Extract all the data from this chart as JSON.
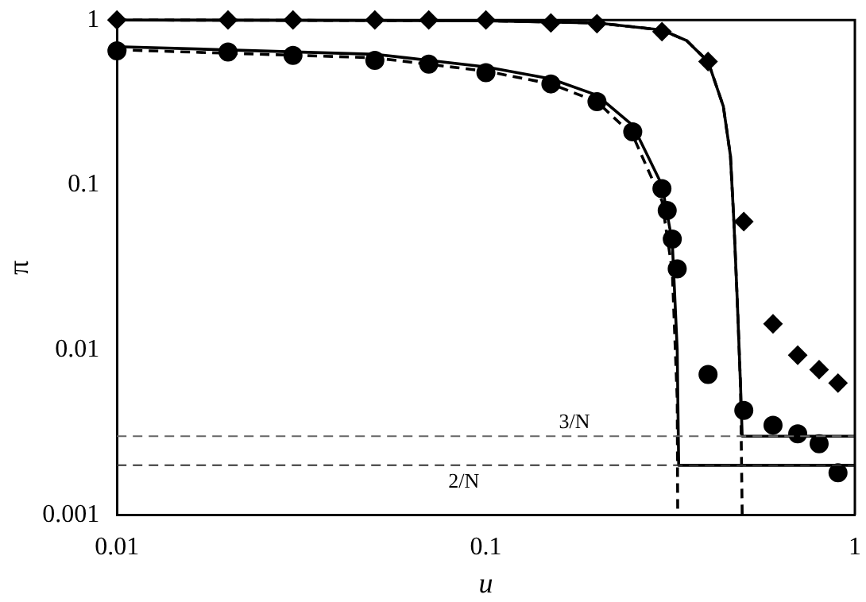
{
  "chart_data": {
    "type": "scatter",
    "xlabel": "u",
    "ylabel": "π",
    "log": "xy",
    "xlim": [
      0.01,
      1
    ],
    "ylim": [
      0.001,
      1
    ],
    "xticks": [
      0.01,
      0.1,
      1
    ],
    "yticks": [
      0.001,
      0.01,
      0.1,
      1
    ],
    "grid": false,
    "legend": false,
    "series": [
      {
        "type": "scatter",
        "marker": "diamond",
        "color": "#000000",
        "x": [
          0.01,
          0.02,
          0.03,
          0.05,
          0.07,
          0.1,
          0.15,
          0.2,
          0.3,
          0.4,
          0.5,
          0.6,
          0.7,
          0.8,
          0.9
        ],
        "values": [
          1,
          1,
          1,
          1,
          1,
          1,
          0.96,
          0.95,
          0.85,
          0.56,
          0.06,
          0.0144,
          0.0093,
          0.0076,
          0.0063
        ]
      },
      {
        "type": "scatter",
        "marker": "circle",
        "color": "#000000",
        "x": [
          0.01,
          0.02,
          0.03,
          0.05,
          0.07,
          0.1,
          0.15,
          0.2,
          0.25,
          0.3,
          0.31,
          0.32,
          0.33,
          0.4,
          0.5,
          0.6,
          0.7,
          0.8,
          0.9
        ],
        "values": [
          0.65,
          0.64,
          0.61,
          0.57,
          0.54,
          0.48,
          0.41,
          0.32,
          0.21,
          0.095,
          0.07,
          0.047,
          0.031,
          0.0071,
          0.0043,
          0.0035,
          0.0031,
          0.0027,
          0.0018
        ]
      },
      {
        "type": "line",
        "marker": "none",
        "line_style": "solid",
        "color": "#000000",
        "x": [
          0.01,
          0.1,
          0.2,
          0.3,
          0.35,
          0.4,
          0.44,
          0.46,
          0.47,
          0.48,
          0.49,
          0.495,
          1
        ],
        "values": [
          1,
          0.99,
          0.96,
          0.87,
          0.75,
          0.56,
          0.3,
          0.15,
          0.06,
          0.02,
          0.006,
          0.003,
          0.003
        ]
      },
      {
        "type": "line",
        "marker": "none",
        "line_style": "dashed",
        "color": "#000000",
        "x": [
          0.01,
          0.1,
          0.2,
          0.3,
          0.35,
          0.4,
          0.44,
          0.46,
          0.47,
          0.48,
          0.49,
          0.495
        ],
        "values": [
          1,
          0.99,
          0.96,
          0.87,
          0.75,
          0.56,
          0.3,
          0.15,
          0.06,
          0.02,
          0.006,
          0.001
        ]
      },
      {
        "type": "line",
        "marker": "none",
        "line_style": "solid",
        "color": "#000000",
        "x": [
          0.01,
          0.05,
          0.1,
          0.15,
          0.2,
          0.25,
          0.3,
          0.32,
          0.33,
          0.333,
          1
        ],
        "values": [
          0.69,
          0.62,
          0.52,
          0.44,
          0.35,
          0.23,
          0.1,
          0.045,
          0.01,
          0.002,
          0.002
        ]
      },
      {
        "type": "line",
        "marker": "none",
        "line_style": "dashed",
        "color": "#000000",
        "x": [
          0.01,
          0.05,
          0.1,
          0.15,
          0.2,
          0.25,
          0.3,
          0.32,
          0.33,
          0.331
        ],
        "values": [
          0.66,
          0.59,
          0.49,
          0.41,
          0.32,
          0.2,
          0.08,
          0.03,
          0.005,
          0.001
        ]
      }
    ],
    "ref_lines": [
      {
        "axis": "y",
        "value": 0.003,
        "label": "3/N",
        "color": "#666666",
        "line_style": "dashed"
      },
      {
        "axis": "y",
        "value": 0.002,
        "label": "2/N",
        "color": "#333333",
        "line_style": "dashed"
      }
    ]
  }
}
